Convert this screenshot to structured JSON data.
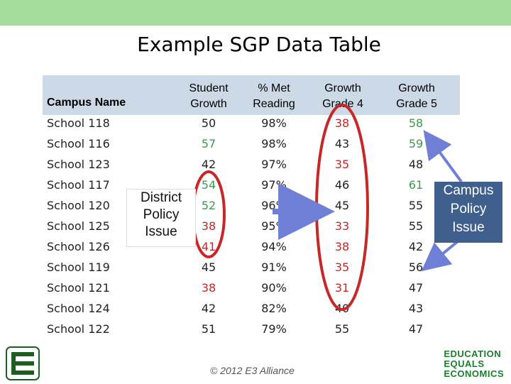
{
  "title": "Example SGP Data Table",
  "headers": {
    "campus": "Campus Name",
    "student_growth": [
      "Student",
      "Growth"
    ],
    "met_reading": [
      "% Met",
      "Reading"
    ],
    "growth_g4": [
      "Growth",
      "Grade 4"
    ],
    "growth_g5": [
      "Growth",
      "Grade 5"
    ]
  },
  "rows": [
    {
      "school": "School 118",
      "sg": "50",
      "met": "98%",
      "g4": "38",
      "g5": "58"
    },
    {
      "school": "School 116",
      "sg": "57",
      "met": "98%",
      "g4": "43",
      "g5": "59"
    },
    {
      "school": "School 123",
      "sg": "42",
      "met": "97%",
      "g4": "35",
      "g5": "48"
    },
    {
      "school": "School 117",
      "sg": "54",
      "met": "97%",
      "g4": "46",
      "g5": "61"
    },
    {
      "school": "School 120",
      "sg": "52",
      "met": "96%",
      "g4": "45",
      "g5": "55"
    },
    {
      "school": "School 125",
      "sg": "38",
      "met": "95%",
      "g4": "33",
      "g5": "55"
    },
    {
      "school": "School 126",
      "sg": "41",
      "met": "94%",
      "g4": "38",
      "g5": "42"
    },
    {
      "school": "School 119",
      "sg": "45",
      "met": "91%",
      "g4": "35",
      "g5": "56"
    },
    {
      "school": "School 121",
      "sg": "38",
      "met": "90%",
      "g4": "31",
      "g5": "47"
    },
    {
      "school": "School 124",
      "sg": "42",
      "met": "82%",
      "g4": "40",
      "g5": "43"
    },
    {
      "school": "School 122",
      "sg": "51",
      "met": "79%",
      "g4": "55",
      "g5": "47"
    }
  ],
  "colors": {
    "high": "#3a9c4a",
    "low": "#c62828",
    "neutral": "#222222",
    "accent_bar": "#a6dd9c",
    "arrow": "#6f7fd6"
  },
  "callouts": {
    "district": [
      "District",
      "Policy",
      "Issue"
    ],
    "campus": [
      "Campus",
      "Policy",
      "Issue"
    ]
  },
  "footer": "© 2012 E3 Alliance",
  "logo_right": [
    "EDUCATION",
    "EQUALS",
    "ECONOMICS"
  ]
}
